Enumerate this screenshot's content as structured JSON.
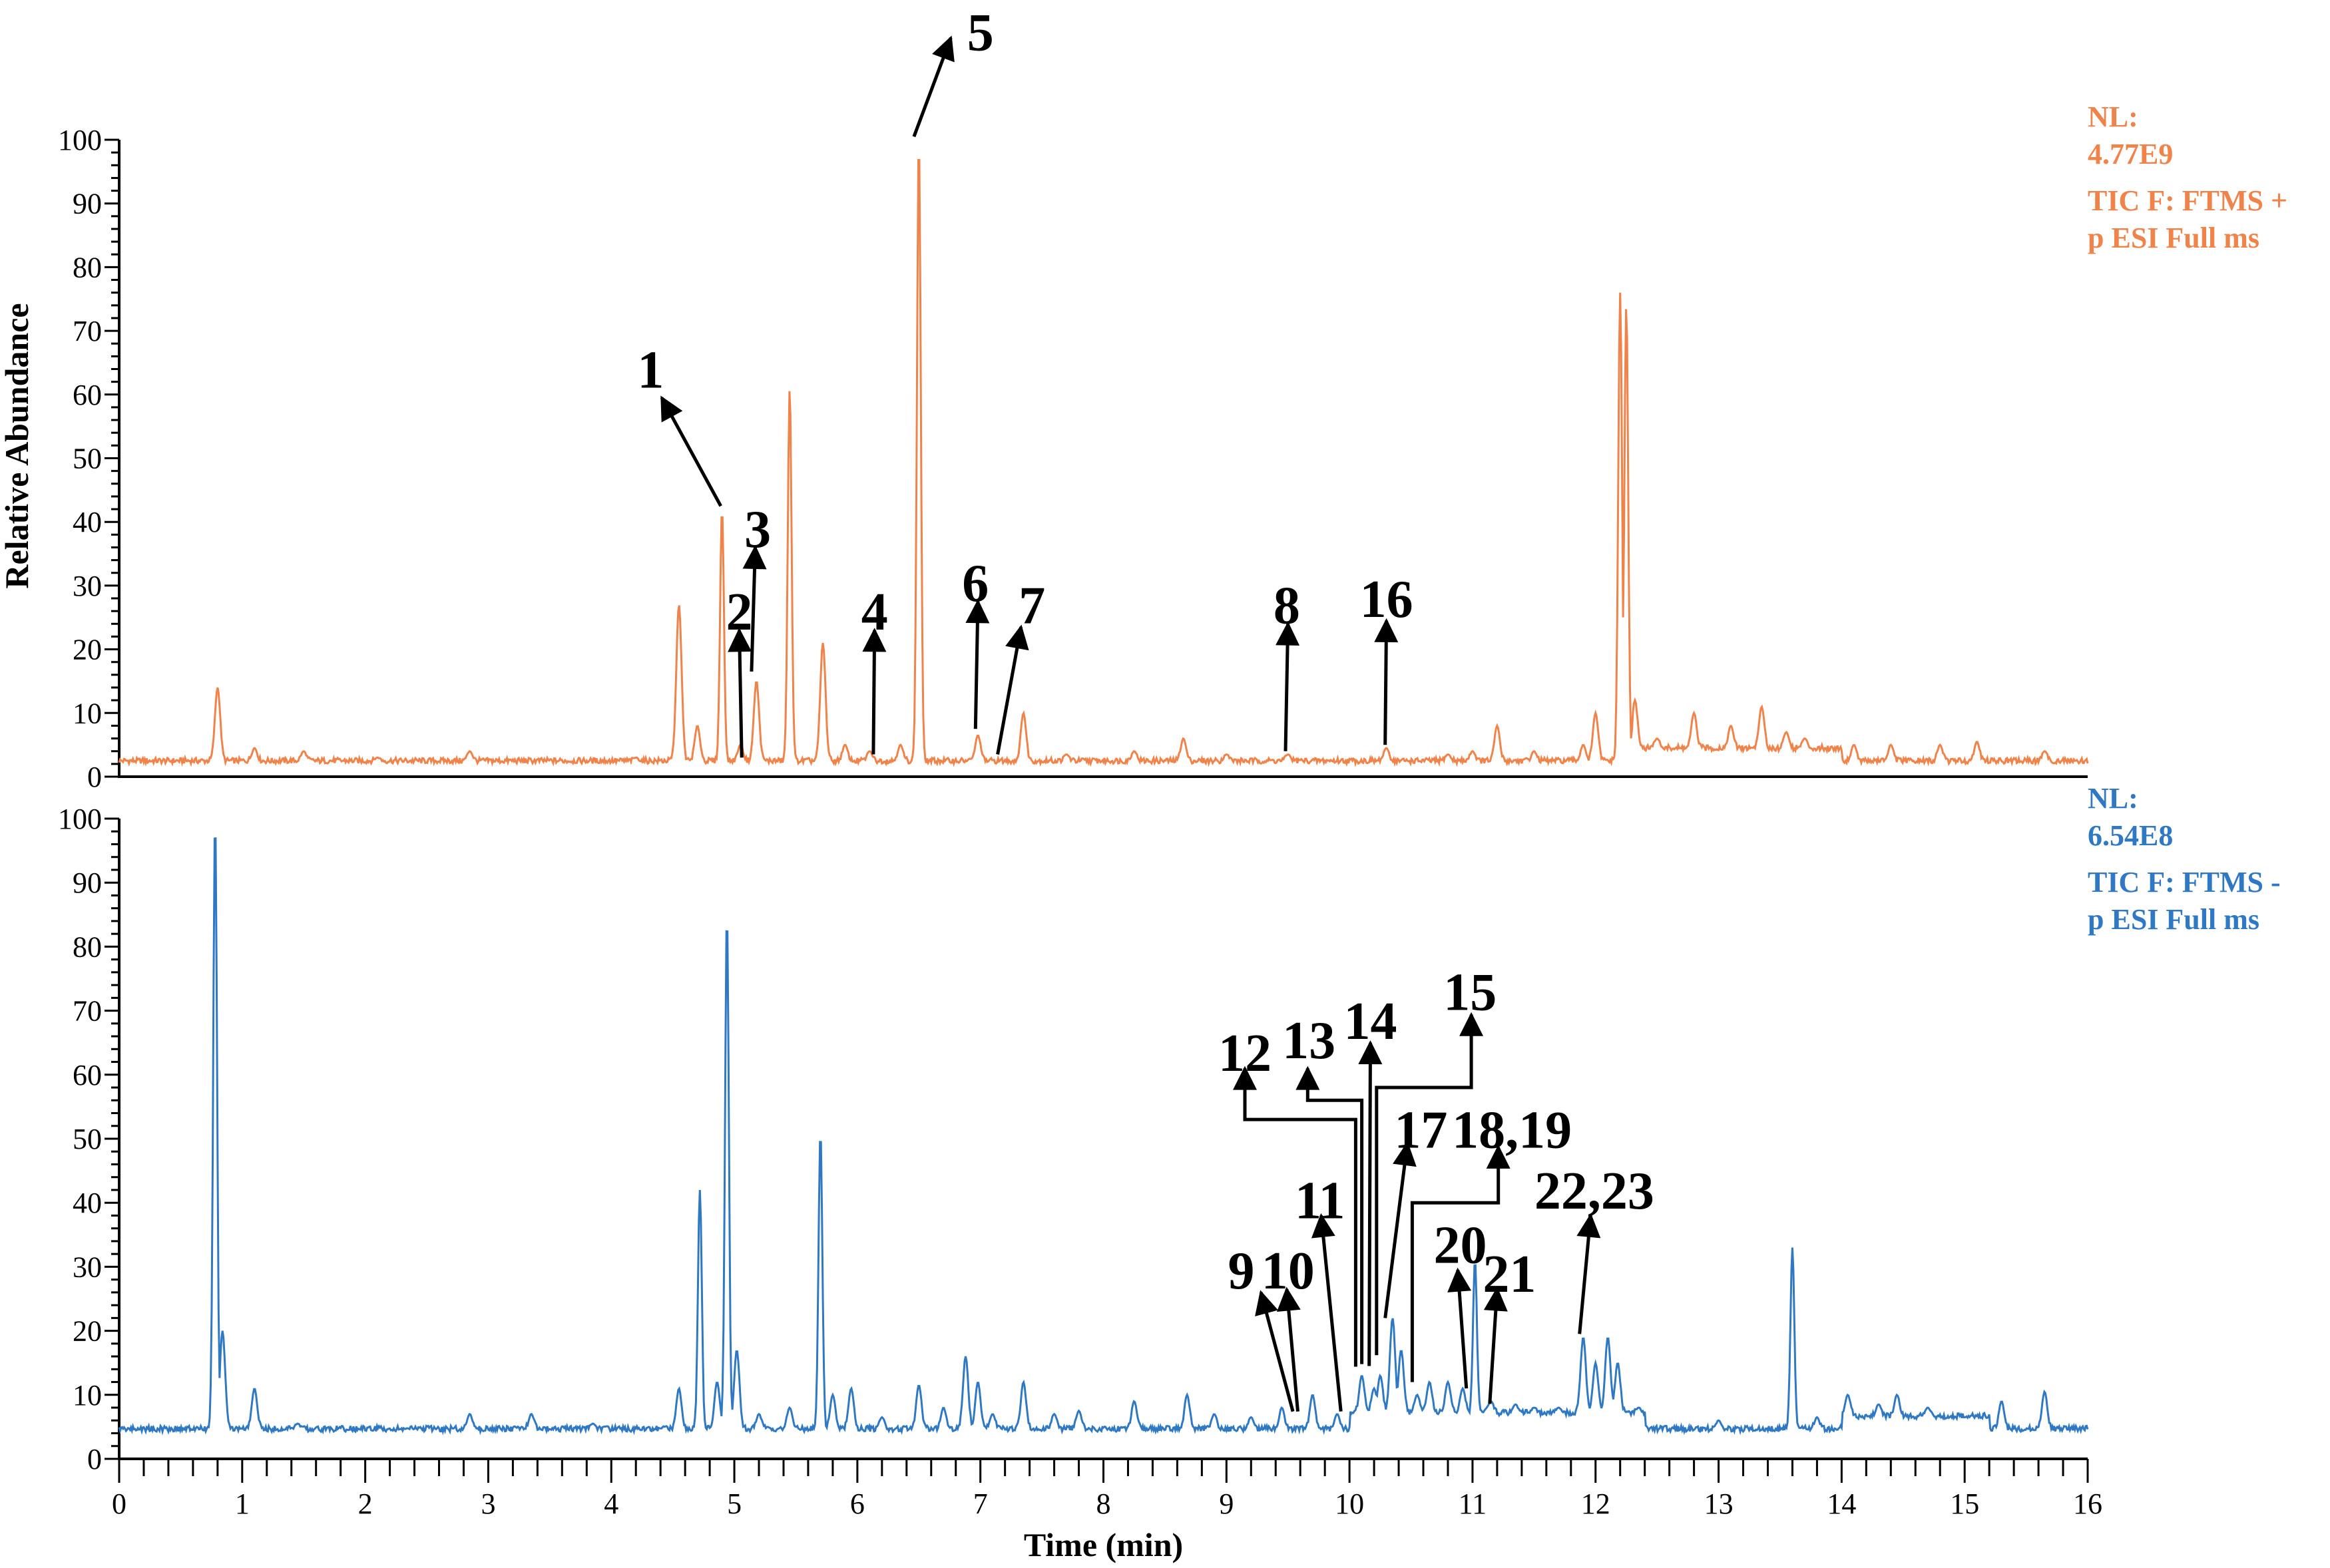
{
  "chart_data": [
    {
      "type": "line",
      "panel": "top",
      "color": "#F0834A",
      "ylabel": "Relative Abundance",
      "xlim": [
        0,
        16
      ],
      "ylim": [
        0,
        100
      ],
      "yticks": [
        "0",
        "10",
        "20",
        "30",
        "40",
        "50",
        "60",
        "70",
        "80",
        "90",
        "100"
      ],
      "legend": {
        "nl_label": "NL:",
        "nl_value": "4.77E9",
        "line1": "TIC F: FTMS +",
        "line2": "p ESI Full ms",
        "placement": "top-right"
      },
      "baseline": 2.5,
      "peaks": [
        [
          0.8,
          14
        ],
        [
          1.1,
          4.5
        ],
        [
          1.5,
          4
        ],
        [
          2.1,
          3
        ],
        [
          2.85,
          4
        ],
        [
          4.2,
          3
        ],
        [
          4.55,
          27
        ],
        [
          4.7,
          8
        ],
        [
          4.9,
          42
        ],
        [
          5.05,
          5
        ],
        [
          5.18,
          15
        ],
        [
          5.45,
          61
        ],
        [
          5.72,
          21
        ],
        [
          5.9,
          5
        ],
        [
          6.1,
          4
        ],
        [
          6.35,
          5
        ],
        [
          6.5,
          100
        ],
        [
          6.98,
          6.5
        ],
        [
          7.35,
          10
        ],
        [
          7.7,
          3.5
        ],
        [
          8.25,
          4
        ],
        [
          8.65,
          6
        ],
        [
          9.0,
          3.5
        ],
        [
          9.5,
          3.5
        ],
        [
          10.3,
          4.5
        ],
        [
          10.8,
          3.5
        ],
        [
          11.0,
          4
        ],
        [
          11.2,
          8
        ],
        [
          11.5,
          4
        ],
        [
          11.9,
          5
        ],
        [
          12.0,
          10
        ],
        [
          12.2,
          76
        ],
        [
          12.25,
          74
        ],
        [
          12.32,
          12
        ],
        [
          12.5,
          6
        ],
        [
          12.8,
          10
        ],
        [
          13.1,
          8
        ],
        [
          13.35,
          11
        ],
        [
          13.55,
          7
        ],
        [
          13.7,
          6
        ],
        [
          14.1,
          5
        ],
        [
          14.4,
          5
        ],
        [
          14.8,
          5
        ],
        [
          15.1,
          5.5
        ],
        [
          15.65,
          4
        ]
      ],
      "annotations": [
        {
          "label": "1",
          "text_at": [
            4.32,
            64
          ],
          "path": [
            [
              4.89,
              42.5
            ],
            [
              4.41,
              59.5
            ]
          ]
        },
        {
          "label": "2",
          "text_at": [
            5.04,
            26
          ],
          "path": [
            [
              5.06,
              3
            ],
            [
              5.04,
              23
            ]
          ]
        },
        {
          "label": "3",
          "text_at": [
            5.19,
            39
          ],
          "path": [
            [
              5.14,
              16.5
            ],
            [
              5.17,
              36
            ]
          ]
        },
        {
          "label": "4",
          "text_at": [
            6.14,
            26
          ],
          "path": [
            [
              6.13,
              3.5
            ],
            [
              6.14,
              23
            ]
          ]
        },
        {
          "label": "5",
          "text_at": [
            7.0,
            117
          ],
          "path": [
            [
              6.46,
              100.5
            ],
            [
              6.76,
              116
            ]
          ]
        },
        {
          "label": "6",
          "text_at": [
            6.96,
            30.5
          ],
          "path": [
            [
              6.96,
              7.5
            ],
            [
              6.98,
              27.5
            ]
          ]
        },
        {
          "label": "7",
          "text_at": [
            7.42,
            27
          ],
          "path": [
            [
              7.14,
              3.5
            ],
            [
              7.33,
              23.5
            ]
          ]
        },
        {
          "label": "8",
          "text_at": [
            9.49,
            27
          ],
          "path": [
            [
              9.48,
              4
            ],
            [
              9.5,
              24
            ]
          ]
        },
        {
          "label": "16",
          "text_at": [
            10.3,
            28
          ],
          "path": [
            [
              10.29,
              5
            ],
            [
              10.3,
              24.5
            ]
          ]
        }
      ]
    },
    {
      "type": "line",
      "panel": "bottom",
      "color": "#2F78C4",
      "xlabel": "Time (min)",
      "ylabel": "Relative Abundance",
      "xlim": [
        0,
        16
      ],
      "ylim": [
        0,
        100
      ],
      "xticks": [
        "0",
        "1",
        "2",
        "3",
        "4",
        "5",
        "6",
        "7",
        "8",
        "9",
        "10",
        "11",
        "12",
        "13",
        "14",
        "15",
        "16"
      ],
      "yticks": [
        "0",
        "10",
        "20",
        "30",
        "40",
        "50",
        "60",
        "70",
        "80",
        "90",
        "100"
      ],
      "legend": {
        "nl_label": "NL:",
        "nl_value": "6.54E8",
        "line1": "TIC F: FTMS -",
        "line2": "p ESI Full ms",
        "placement": "right"
      },
      "baseline": 4.7,
      "peaks": [
        [
          0.78,
          100
        ],
        [
          0.84,
          20
        ],
        [
          1.1,
          11
        ],
        [
          1.45,
          5.5
        ],
        [
          2.85,
          7
        ],
        [
          3.35,
          7
        ],
        [
          3.85,
          5.5
        ],
        [
          4.55,
          11
        ],
        [
          4.72,
          42
        ],
        [
          4.86,
          12
        ],
        [
          4.94,
          85
        ],
        [
          5.02,
          17
        ],
        [
          5.2,
          7
        ],
        [
          5.45,
          8
        ],
        [
          5.7,
          51
        ],
        [
          5.8,
          10
        ],
        [
          5.95,
          11
        ],
        [
          6.2,
          6.5
        ],
        [
          6.5,
          11.5
        ],
        [
          6.7,
          8
        ],
        [
          6.88,
          16
        ],
        [
          6.98,
          12
        ],
        [
          7.1,
          7
        ],
        [
          7.35,
          12
        ],
        [
          7.6,
          7
        ],
        [
          7.8,
          7.5
        ],
        [
          8.25,
          9
        ],
        [
          8.68,
          10
        ],
        [
          8.9,
          7
        ],
        [
          9.2,
          6.5
        ],
        [
          9.45,
          8
        ],
        [
          9.7,
          10
        ],
        [
          9.9,
          7
        ],
        [
          10.1,
          13
        ],
        [
          10.2,
          11
        ],
        [
          10.25,
          13
        ],
        [
          10.35,
          22
        ],
        [
          10.42,
          17
        ],
        [
          10.55,
          10
        ],
        [
          10.65,
          12
        ],
        [
          10.8,
          12
        ],
        [
          10.92,
          11
        ],
        [
          11.02,
          31
        ],
        [
          11.15,
          9
        ],
        [
          11.35,
          8.5
        ],
        [
          11.5,
          8
        ],
        [
          11.7,
          8
        ],
        [
          11.9,
          19
        ],
        [
          12.0,
          15
        ],
        [
          12.1,
          19
        ],
        [
          12.18,
          15
        ],
        [
          12.35,
          8
        ],
        [
          13.0,
          6
        ],
        [
          13.6,
          33
        ],
        [
          13.8,
          6.5
        ],
        [
          14.05,
          10
        ],
        [
          14.3,
          8.5
        ],
        [
          14.45,
          10
        ],
        [
          14.7,
          8
        ],
        [
          15.0,
          6.5
        ],
        [
          15.3,
          9
        ],
        [
          15.65,
          10.5
        ]
      ],
      "annotations": [
        {
          "label": "12",
          "text_at": [
            9.15,
            63.5
          ],
          "path": [
            [
              10.05,
              14.4
            ],
            [
              10.05,
              53
            ],
            [
              9.15,
              53
            ],
            [
              9.15,
              61
            ]
          ]
        },
        {
          "label": "13",
          "text_at": [
            9.67,
            65.5
          ],
          "path": [
            [
              10.1,
              14.8
            ],
            [
              10.1,
              56
            ],
            [
              9.66,
              56
            ],
            [
              9.66,
              61
            ]
          ]
        },
        {
          "label": "14",
          "text_at": [
            10.17,
            68.5
          ],
          "path": [
            [
              10.16,
              14.5
            ],
            [
              10.17,
              65
            ]
          ]
        },
        {
          "label": "15",
          "text_at": [
            10.98,
            73
          ],
          "path": [
            [
              10.22,
              16.2
            ],
            [
              10.22,
              58
            ],
            [
              10.99,
              58
            ],
            [
              10.99,
              69.4
            ]
          ]
        },
        {
          "label": "17",
          "text_at": [
            10.58,
            51.5
          ],
          "path": [
            [
              10.29,
              22
            ],
            [
              10.47,
              49.2
            ]
          ]
        },
        {
          "label": "18,19",
          "text_at": [
            11.32,
            51.5
          ],
          "path": [
            [
              10.51,
              12
            ],
            [
              10.51,
              40
            ],
            [
              11.21,
              40
            ],
            [
              11.21,
              48.7
            ]
          ]
        },
        {
          "label": "11",
          "text_at": [
            9.76,
            40.5
          ],
          "path": [
            [
              9.93,
              7.4
            ],
            [
              9.77,
              38
            ]
          ]
        },
        {
          "label": "9",
          "text_at": [
            9.12,
            29.5
          ],
          "path": [
            [
              9.54,
              7.4
            ],
            [
              9.28,
              26
            ]
          ]
        },
        {
          "label": "10",
          "text_at": [
            9.5,
            29.5
          ],
          "path": [
            [
              9.58,
              7.4
            ],
            [
              9.49,
              26.5
            ]
          ]
        },
        {
          "label": "20",
          "text_at": [
            10.9,
            33.5
          ],
          "path": [
            [
              10.95,
              11
            ],
            [
              10.88,
              29.5
            ]
          ]
        },
        {
          "label": "21",
          "text_at": [
            11.3,
            29
          ],
          "path": [
            [
              11.14,
              8.6
            ],
            [
              11.2,
              26.5
            ]
          ]
        },
        {
          "label": "22,23",
          "text_at": [
            11.99,
            42
          ],
          "path": [
            [
              11.87,
              19.5
            ],
            [
              11.96,
              38
            ]
          ]
        }
      ]
    }
  ]
}
